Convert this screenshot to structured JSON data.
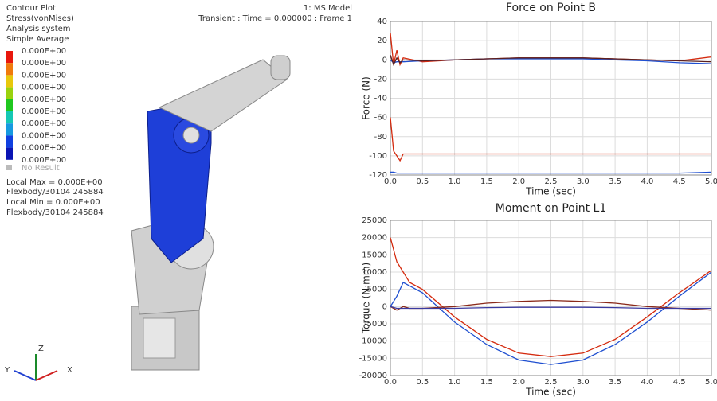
{
  "viewport": {
    "header": [
      "Contour Plot",
      "Stress(vonMises)",
      "Analysis system",
      "Simple Average"
    ],
    "legend": {
      "labels": [
        "0.000E+00",
        "0.000E+00",
        "0.000E+00",
        "0.000E+00",
        "0.000E+00",
        "0.000E+00",
        "0.000E+00",
        "0.000E+00",
        "0.000E+00",
        "0.000E+00"
      ],
      "colors": [
        "#e8170d",
        "#f07a0c",
        "#e8c80c",
        "#9ad20e",
        "#1fc81f",
        "#15c8b4",
        "#169ae0",
        "#1040e0",
        "#0a14b4"
      ],
      "no_result": "No Result"
    },
    "info": [
      "Local Max = 0.000E+00",
      "Flexbody/30104 245884",
      "Local Min =  0.000E+00",
      "Flexbody/30104 245884"
    ],
    "model": "1: MS Model",
    "frame": "Transient : Time = 0.000000 : Frame 1",
    "triad": {
      "x": "X",
      "y": "Y",
      "z": "Z"
    }
  },
  "chart_data": [
    {
      "type": "line",
      "title": "Force on Point B",
      "x_label": "Time (sec)",
      "y_label": "Force (N)",
      "x": [
        0,
        0.05,
        0.1,
        0.15,
        0.2,
        0.5,
        1,
        1.5,
        2,
        2.5,
        3,
        3.5,
        4,
        4.5,
        5
      ],
      "series": [
        {
          "color": "#d42a0e",
          "values": [
            -60,
            -95,
            -100,
            -105,
            -98,
            -98,
            -98,
            -98,
            -98,
            -98,
            -98,
            -98,
            -98,
            -98,
            -98
          ]
        },
        {
          "color": "#1f4fd0",
          "values": [
            -117,
            -117,
            -118,
            -118,
            -118,
            -118,
            -118,
            -118,
            -118,
            -118,
            -118,
            -118,
            -118,
            -118,
            -117
          ]
        },
        {
          "color": "#d42a0e",
          "values": [
            28,
            -5,
            10,
            -5,
            2,
            -2,
            0,
            1,
            2,
            2,
            2,
            1,
            0,
            -1,
            3
          ]
        },
        {
          "color": "#1f4fd0",
          "values": [
            0,
            -3,
            -2,
            -2,
            -2,
            -1,
            0,
            1,
            1,
            1,
            1,
            0,
            -1,
            -3,
            -4
          ]
        },
        {
          "color": "#5a2020",
          "values": [
            5,
            -5,
            2,
            -3,
            0,
            -1,
            0,
            1,
            2,
            2,
            2,
            1,
            0,
            -1,
            -2
          ]
        }
      ],
      "xlim": [
        0,
        5
      ],
      "xticks": [
        {
          "value": 0,
          "label": "0.0"
        },
        0.5,
        {
          "value": 1,
          "label": "1.0"
        },
        1.5,
        {
          "value": 2,
          "label": "2.0"
        },
        2.5,
        {
          "value": 3,
          "label": "3.0"
        },
        3.5,
        {
          "value": 4,
          "label": "4.0"
        },
        4.5,
        {
          "value": 5,
          "label": "5.0"
        }
      ],
      "ylim": [
        -120,
        40
      ],
      "yticks": [
        -120,
        -100,
        -80,
        -60,
        -40,
        -20,
        0,
        20,
        40
      ],
      "grid": true
    },
    {
      "type": "line",
      "title": "Moment on Point L1",
      "x_label": "Time (sec)",
      "y_label": "Torque (N·mm)",
      "x": [
        0,
        0.1,
        0.2,
        0.3,
        0.5,
        1,
        1.5,
        2,
        2.5,
        3,
        3.5,
        4,
        4.5,
        5
      ],
      "series": [
        {
          "color": "#d42a0e",
          "values": [
            20000,
            13000,
            10000,
            7000,
            5000,
            -3000,
            -9500,
            -13500,
            -14500,
            -13500,
            -9500,
            -3000,
            4000,
            10500
          ]
        },
        {
          "color": "#1f4fd0",
          "values": [
            0,
            3000,
            7000,
            6000,
            4000,
            -4500,
            -11000,
            -15500,
            -16800,
            -15500,
            -11000,
            -4500,
            3000,
            10000
          ]
        },
        {
          "color": "#8a2a1a",
          "values": [
            0,
            -1000,
            0,
            -500,
            -500,
            0,
            1000,
            1500,
            1800,
            1500,
            1000,
            0,
            -500,
            -1000
          ]
        },
        {
          "color": "#3a3aa0",
          "values": [
            0,
            -500,
            -500,
            -500,
            -500,
            -500,
            -300,
            -200,
            -200,
            -200,
            -300,
            -500,
            -500,
            -500
          ]
        }
      ],
      "xlim": [
        0,
        5
      ],
      "xticks": [
        {
          "value": 0,
          "label": "0.0"
        },
        0.5,
        {
          "value": 1,
          "label": "1.0"
        },
        1.5,
        {
          "value": 2,
          "label": "2.0"
        },
        2.5,
        {
          "value": 3,
          "label": "3.0"
        },
        3.5,
        {
          "value": 4,
          "label": "4.0"
        },
        4.5,
        {
          "value": 5,
          "label": "5.0"
        }
      ],
      "ylim": [
        -20000,
        25000
      ],
      "yticks": [
        -20000,
        -15000,
        -10000,
        -5000,
        0,
        5000,
        10000,
        15000,
        20000,
        25000
      ],
      "grid": true
    }
  ]
}
